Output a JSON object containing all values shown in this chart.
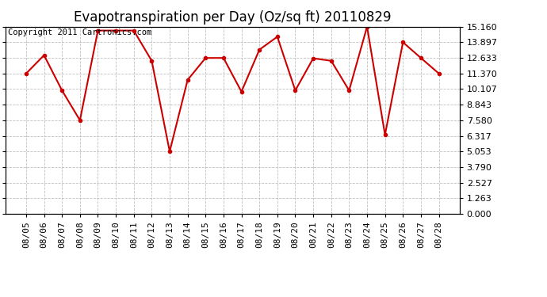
{
  "title": "Evapotranspiration per Day (Oz/sq ft) 20110829",
  "copyright_text": "Copyright 2011 Cartronics.com",
  "dates": [
    "08/05",
    "08/06",
    "08/07",
    "08/08",
    "08/09",
    "08/10",
    "08/11",
    "08/12",
    "08/13",
    "08/14",
    "08/15",
    "08/16",
    "08/17",
    "08/18",
    "08/19",
    "08/20",
    "08/21",
    "08/22",
    "08/23",
    "08/24",
    "08/25",
    "08/26",
    "08/27",
    "08/28"
  ],
  "values": [
    11.37,
    12.85,
    10.0,
    7.58,
    14.85,
    14.85,
    14.85,
    12.4,
    5.05,
    10.85,
    12.63,
    12.63,
    9.9,
    13.3,
    14.35,
    10.0,
    12.6,
    12.4,
    10.0,
    15.16,
    6.4,
    13.9,
    12.63,
    11.37
  ],
  "ylim": [
    0.0,
    15.16
  ],
  "yticks": [
    0.0,
    1.263,
    2.527,
    3.79,
    5.053,
    6.317,
    7.58,
    8.843,
    10.107,
    11.37,
    12.633,
    13.897,
    15.16
  ],
  "line_color": "#cc0000",
  "marker": "o",
  "marker_size": 3,
  "background_color": "#ffffff",
  "plot_bg_color": "#ffffff",
  "grid_color": "#b0b0b0",
  "title_fontsize": 12,
  "tick_fontsize": 8,
  "copyright_fontsize": 7.5
}
